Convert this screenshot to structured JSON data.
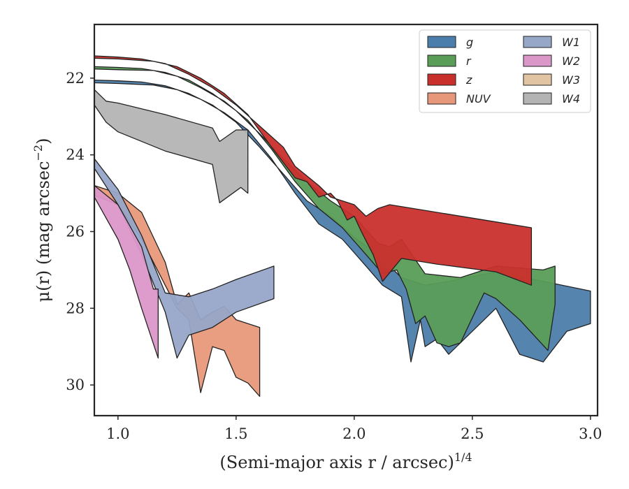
{
  "chart_data": {
    "type": "area",
    "xlabel": "(Semi-major axis r / arcsec)",
    "xlabel_exponent": "1/4",
    "ylabel": "μ(r) (mag arcsec",
    "ylabel_exponent": "−2",
    "ylabel_suffix": ")",
    "xlim": [
      0.9,
      3.03
    ],
    "ylim": [
      30.8,
      20.6
    ],
    "y_inverted": true,
    "xticks": [
      1.0,
      1.5,
      2.0,
      2.5,
      3.0
    ],
    "xtick_labels": [
      "1.0",
      "1.5",
      "2.0",
      "2.5",
      "3.0"
    ],
    "yticks": [
      22,
      24,
      26,
      28,
      30
    ],
    "ytick_labels": [
      "22",
      "24",
      "26",
      "28",
      "30"
    ],
    "grid": false,
    "legend_position": "upper right",
    "legend_columns": 2,
    "series": [
      {
        "name": "g",
        "color": "#4c7eab",
        "upper": [
          [
            0.9,
            22.05
          ],
          [
            1.0,
            22.07
          ],
          [
            1.1,
            22.1
          ],
          [
            1.2,
            22.2
          ],
          [
            1.3,
            22.4
          ],
          [
            1.4,
            22.7
          ],
          [
            1.5,
            23.15
          ],
          [
            1.6,
            23.8
          ],
          [
            1.7,
            24.5
          ],
          [
            1.8,
            25.2
          ],
          [
            1.9,
            25.6
          ],
          [
            2.0,
            26.15
          ],
          [
            2.1,
            26.6
          ],
          [
            2.15,
            26.9
          ],
          [
            2.2,
            27.2
          ],
          [
            2.3,
            27.4
          ],
          [
            2.4,
            27.3
          ],
          [
            2.6,
            27.05
          ],
          [
            2.8,
            27.3
          ],
          [
            3.0,
            27.55
          ]
        ],
        "lower": [
          [
            3.0,
            28.4
          ],
          [
            2.9,
            28.6
          ],
          [
            2.8,
            29.4
          ],
          [
            2.7,
            29.2
          ],
          [
            2.6,
            28.0
          ],
          [
            2.4,
            29.2
          ],
          [
            2.35,
            28.8
          ],
          [
            2.3,
            29.0
          ],
          [
            2.28,
            28.3
          ],
          [
            2.24,
            29.4
          ],
          [
            2.2,
            27.7
          ],
          [
            2.12,
            27.4
          ],
          [
            2.05,
            26.9
          ],
          [
            1.95,
            26.2
          ],
          [
            1.85,
            25.8
          ],
          [
            1.75,
            25.0
          ],
          [
            1.65,
            24.1
          ],
          [
            1.55,
            23.35
          ],
          [
            1.45,
            22.9
          ],
          [
            1.35,
            22.55
          ],
          [
            1.25,
            22.3
          ],
          [
            1.15,
            22.18
          ],
          [
            1.0,
            22.14
          ],
          [
            0.9,
            22.12
          ]
        ]
      },
      {
        "name": "r",
        "color": "#5a9d58",
        "upper": [
          [
            0.9,
            21.7
          ],
          [
            1.0,
            21.72
          ],
          [
            1.1,
            21.75
          ],
          [
            1.2,
            21.85
          ],
          [
            1.3,
            22.05
          ],
          [
            1.4,
            22.4
          ],
          [
            1.5,
            22.85
          ],
          [
            1.6,
            23.45
          ],
          [
            1.7,
            24.1
          ],
          [
            1.8,
            24.7
          ],
          [
            1.9,
            25.2
          ],
          [
            2.0,
            25.6
          ],
          [
            2.1,
            26.3
          ],
          [
            2.15,
            26.4
          ],
          [
            2.2,
            26.2
          ],
          [
            2.3,
            27.1
          ],
          [
            2.45,
            27.2
          ],
          [
            2.6,
            26.9
          ],
          [
            2.8,
            27.0
          ],
          [
            2.85,
            26.9
          ]
        ],
        "lower": [
          [
            2.85,
            27.9
          ],
          [
            2.82,
            29.1
          ],
          [
            2.7,
            28.3
          ],
          [
            2.6,
            27.75
          ],
          [
            2.55,
            27.6
          ],
          [
            2.45,
            28.9
          ],
          [
            2.4,
            29.0
          ],
          [
            2.35,
            28.9
          ],
          [
            2.3,
            28.2
          ],
          [
            2.26,
            28.4
          ],
          [
            2.22,
            27.5
          ],
          [
            2.18,
            27.0
          ],
          [
            2.12,
            27.1
          ],
          [
            2.05,
            26.6
          ],
          [
            1.95,
            25.9
          ],
          [
            1.85,
            25.4
          ],
          [
            1.75,
            24.7
          ],
          [
            1.65,
            23.85
          ],
          [
            1.55,
            23.1
          ],
          [
            1.45,
            22.6
          ],
          [
            1.35,
            22.25
          ],
          [
            1.25,
            21.95
          ],
          [
            1.15,
            21.8
          ],
          [
            1.0,
            21.78
          ],
          [
            0.9,
            21.76
          ]
        ]
      },
      {
        "name": "z",
        "color": "#c9302c",
        "upper": [
          [
            0.9,
            21.42
          ],
          [
            1.0,
            21.45
          ],
          [
            1.1,
            21.5
          ],
          [
            1.2,
            21.62
          ],
          [
            1.3,
            21.9
          ],
          [
            1.4,
            22.25
          ],
          [
            1.5,
            22.7
          ],
          [
            1.6,
            23.25
          ],
          [
            1.7,
            23.8
          ],
          [
            1.75,
            24.3
          ],
          [
            1.85,
            24.8
          ],
          [
            1.9,
            25.1
          ],
          [
            2.0,
            25.3
          ],
          [
            2.05,
            25.6
          ],
          [
            2.1,
            25.4
          ],
          [
            2.15,
            25.3
          ],
          [
            2.6,
            25.75
          ],
          [
            2.75,
            25.9
          ]
        ],
        "lower": [
          [
            2.75,
            27.4
          ],
          [
            2.6,
            27.05
          ],
          [
            2.35,
            26.85
          ],
          [
            2.2,
            26.7
          ],
          [
            2.12,
            27.3
          ],
          [
            2.08,
            26.6
          ],
          [
            2.03,
            26.0
          ],
          [
            2.0,
            25.6
          ],
          [
            1.97,
            25.7
          ],
          [
            1.93,
            25.2
          ],
          [
            1.9,
            25.0
          ],
          [
            1.85,
            25.1
          ],
          [
            1.8,
            24.7
          ],
          [
            1.75,
            24.6
          ],
          [
            1.7,
            24.2
          ],
          [
            1.65,
            23.8
          ],
          [
            1.55,
            22.95
          ],
          [
            1.45,
            22.4
          ],
          [
            1.35,
            22.0
          ],
          [
            1.25,
            21.7
          ],
          [
            1.15,
            21.56
          ],
          [
            1.0,
            21.5
          ],
          [
            0.9,
            21.48
          ]
        ]
      },
      {
        "name": "NUV",
        "color": "#e8987a",
        "upper": [
          [
            0.9,
            24.8
          ],
          [
            1.0,
            25.0
          ],
          [
            1.1,
            25.5
          ],
          [
            1.2,
            26.8
          ],
          [
            1.25,
            27.9
          ],
          [
            1.3,
            27.6
          ],
          [
            1.35,
            28.3
          ],
          [
            1.4,
            28.1
          ],
          [
            1.45,
            27.95
          ],
          [
            1.5,
            28.3
          ],
          [
            1.55,
            28.4
          ],
          [
            1.6,
            28.5
          ]
        ],
        "lower": [
          [
            1.6,
            30.3
          ],
          [
            1.55,
            29.95
          ],
          [
            1.5,
            29.8
          ],
          [
            1.45,
            29.1
          ],
          [
            1.4,
            29.0
          ],
          [
            1.35,
            30.2
          ],
          [
            1.3,
            28.3
          ],
          [
            1.25,
            28.0
          ],
          [
            1.2,
            27.4
          ],
          [
            1.1,
            26.2
          ],
          [
            1.0,
            25.3
          ],
          [
            0.9,
            25.05
          ]
        ]
      },
      {
        "name": "W1",
        "color": "#97a7c8",
        "upper": [
          [
            0.9,
            24.1
          ],
          [
            1.0,
            24.9
          ],
          [
            1.1,
            26.1
          ],
          [
            1.2,
            27.6
          ],
          [
            1.3,
            27.7
          ],
          [
            1.4,
            27.5
          ],
          [
            1.5,
            27.25
          ],
          [
            1.66,
            26.9
          ]
        ],
        "lower": [
          [
            1.66,
            27.75
          ],
          [
            1.5,
            28.1
          ],
          [
            1.4,
            28.5
          ],
          [
            1.3,
            28.7
          ],
          [
            1.25,
            29.3
          ],
          [
            1.2,
            28.1
          ],
          [
            1.1,
            26.6
          ],
          [
            1.0,
            25.3
          ],
          [
            0.9,
            24.35
          ]
        ]
      },
      {
        "name": "W2",
        "color": "#db97c8",
        "upper": [
          [
            0.9,
            24.8
          ],
          [
            1.0,
            25.3
          ],
          [
            1.1,
            26.4
          ],
          [
            1.15,
            27.5
          ],
          [
            1.17,
            27.5
          ]
        ],
        "lower": [
          [
            1.17,
            29.3
          ],
          [
            1.1,
            28.0
          ],
          [
            1.05,
            27.0
          ],
          [
            1.0,
            26.2
          ],
          [
            0.9,
            25.1
          ]
        ]
      },
      {
        "name": "W3",
        "color": "#e1c5a2",
        "upper": [],
        "lower": []
      },
      {
        "name": "W4",
        "color": "#b4b4b4",
        "upper": [
          [
            0.9,
            22.3
          ],
          [
            0.95,
            22.6
          ],
          [
            1.0,
            22.65
          ],
          [
            1.2,
            22.95
          ],
          [
            1.4,
            23.3
          ],
          [
            1.43,
            23.65
          ],
          [
            1.5,
            23.35
          ],
          [
            1.55,
            23.35
          ]
        ],
        "lower": [
          [
            1.55,
            25.0
          ],
          [
            1.52,
            24.85
          ],
          [
            1.43,
            25.25
          ],
          [
            1.4,
            24.25
          ],
          [
            1.2,
            23.9
          ],
          [
            1.0,
            23.4
          ],
          [
            0.95,
            23.15
          ],
          [
            0.9,
            22.7
          ]
        ]
      }
    ]
  }
}
